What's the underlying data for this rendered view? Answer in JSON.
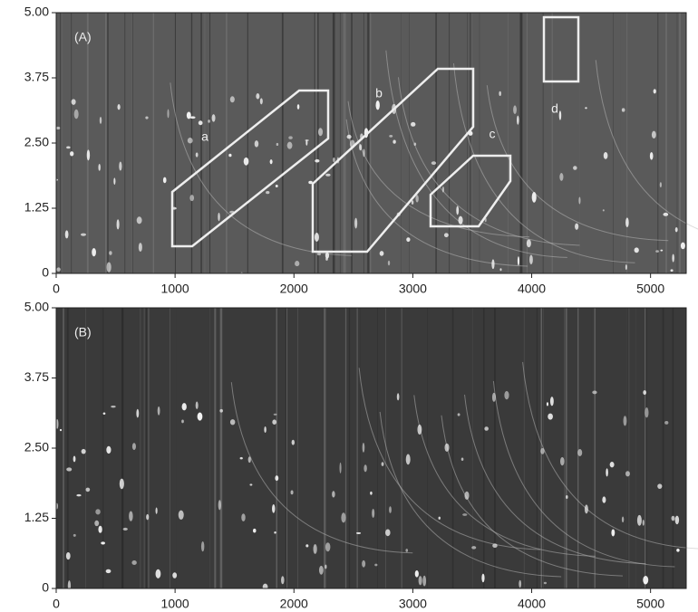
{
  "chart_data": [
    {
      "type": "image",
      "title": "(A)",
      "annotations": [
        "a",
        "b",
        "c",
        "d"
      ],
      "xlim": [
        0,
        5300
      ],
      "xticks": [
        0,
        1000,
        2000,
        3000,
        4000,
        5000
      ],
      "ylim": [
        0,
        5
      ],
      "yticks": [
        0,
        1.25,
        {
          "value": 2.5,
          "label": "2.50"
        },
        3.75,
        {
          "value": 5,
          "label": "5.00"
        }
      ]
    },
    {
      "type": "image",
      "title": "(B)",
      "xlim": [
        0,
        5300
      ],
      "xticks": [
        0,
        1000,
        2000,
        3000,
        4000,
        5000
      ],
      "ylim": [
        0,
        5
      ],
      "yticks": [
        0,
        1.25,
        {
          "value": 2.5,
          "label": "2.50"
        },
        3.75,
        {
          "value": 5,
          "label": "5.00"
        }
      ]
    }
  ]
}
